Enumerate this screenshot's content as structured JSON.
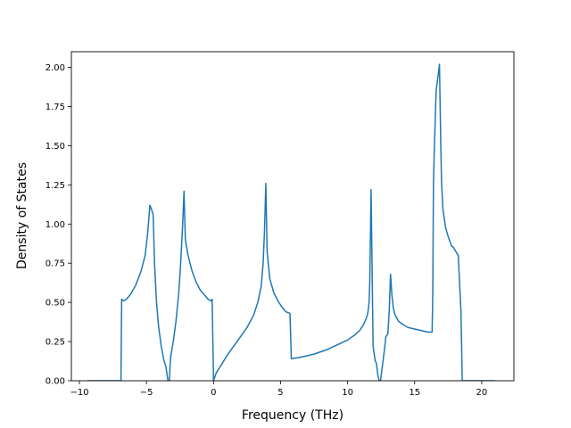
{
  "chart_data": {
    "type": "line",
    "title": "",
    "xlabel": "Frequency (THz)",
    "ylabel": "Density of States",
    "xlim": [
      -10.6,
      22.4
    ],
    "ylim": [
      0.0,
      2.1
    ],
    "xticks": [
      -10,
      -5,
      0,
      5,
      10,
      15,
      20
    ],
    "xtick_labels": [
      "−10",
      "−5",
      "0",
      "5",
      "10",
      "15",
      "20"
    ],
    "yticks": [
      0.0,
      0.25,
      0.5,
      0.75,
      1.0,
      1.25,
      1.5,
      1.75,
      2.0
    ],
    "ytick_labels": [
      "0.00",
      "0.25",
      "0.50",
      "0.75",
      "1.00",
      "1.25",
      "1.50",
      "1.75",
      "2.00"
    ],
    "grid": false,
    "legend": false,
    "series": [
      {
        "color": "#1f77b4",
        "x": [
          -9.4,
          -6.9,
          -6.85,
          -6.7,
          -6.5,
          -6.2,
          -5.8,
          -5.4,
          -5.1,
          -4.9,
          -4.75,
          -4.65,
          -4.5,
          -4.4,
          -4.25,
          -4.1,
          -3.9,
          -3.7,
          -3.55,
          -3.4,
          -3.3,
          -3.2,
          -3.0,
          -2.8,
          -2.6,
          -2.45,
          -2.3,
          -2.2,
          -2.1,
          -1.9,
          -1.6,
          -1.3,
          -1.0,
          -0.7,
          -0.4,
          -0.2,
          -0.1,
          0.0,
          0.2,
          0.5,
          1.0,
          1.5,
          2.0,
          2.5,
          3.0,
          3.3,
          3.55,
          3.7,
          3.8,
          3.85,
          3.9,
          4.0,
          4.2,
          4.5,
          4.8,
          5.1,
          5.4,
          5.7,
          5.75,
          5.8,
          6.5,
          7.5,
          8.5,
          9.5,
          10.0,
          10.5,
          10.9,
          11.2,
          11.4,
          11.5,
          11.55,
          11.6,
          11.65,
          11.75,
          11.9,
          12.05,
          12.15,
          12.25,
          12.35,
          12.45,
          12.6,
          12.75,
          12.85,
          13.0,
          13.1,
          13.2,
          13.3,
          13.4,
          13.5,
          13.6,
          13.8,
          14.1,
          14.5,
          15.0,
          15.5,
          16.0,
          16.3,
          16.35,
          16.4,
          16.45,
          16.6,
          16.75,
          16.85,
          16.9,
          16.95,
          17.0,
          17.1,
          17.3,
          17.5,
          17.75,
          17.9,
          18.1,
          18.25,
          18.45,
          18.55,
          18.6,
          21.0
        ],
        "y": [
          0.0,
          0.0,
          0.52,
          0.51,
          0.52,
          0.55,
          0.61,
          0.7,
          0.8,
          0.95,
          1.12,
          1.1,
          1.06,
          0.75,
          0.5,
          0.35,
          0.22,
          0.13,
          0.09,
          0.0,
          0.0,
          0.15,
          0.25,
          0.38,
          0.55,
          0.75,
          1.0,
          1.21,
          0.9,
          0.8,
          0.7,
          0.63,
          0.58,
          0.55,
          0.52,
          0.51,
          0.52,
          0.0,
          0.05,
          0.09,
          0.16,
          0.22,
          0.28,
          0.34,
          0.42,
          0.5,
          0.6,
          0.75,
          0.95,
          1.1,
          1.26,
          0.82,
          0.65,
          0.56,
          0.51,
          0.47,
          0.44,
          0.43,
          0.3,
          0.14,
          0.15,
          0.17,
          0.2,
          0.24,
          0.26,
          0.29,
          0.32,
          0.36,
          0.4,
          0.43,
          0.46,
          0.5,
          0.62,
          1.22,
          0.22,
          0.13,
          0.11,
          0.04,
          0.0,
          0.0,
          0.1,
          0.2,
          0.28,
          0.3,
          0.44,
          0.68,
          0.55,
          0.47,
          0.43,
          0.41,
          0.38,
          0.36,
          0.34,
          0.33,
          0.32,
          0.31,
          0.31,
          0.55,
          1.25,
          1.43,
          1.85,
          1.95,
          2.02,
          1.75,
          1.5,
          1.28,
          1.1,
          0.98,
          0.92,
          0.86,
          0.85,
          0.82,
          0.8,
          0.45,
          0.0,
          0.0,
          0.0
        ]
      }
    ]
  }
}
